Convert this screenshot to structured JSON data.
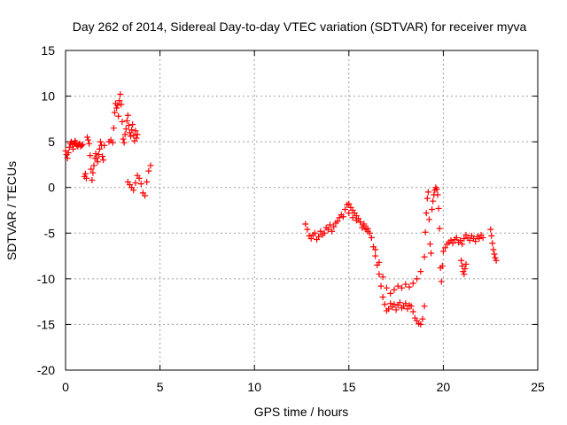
{
  "chart_data": {
    "type": "scatter",
    "title": "Day 262 of 2014, Sidereal Day-to-day VTEC variation (SDTVAR) for receiver myva",
    "xlabel": "GPS time / hours",
    "ylabel": "SDTVAR / TECUs",
    "xlim": [
      0,
      25
    ],
    "ylim": [
      -20,
      15
    ],
    "xticks": [
      0,
      5,
      10,
      15,
      20,
      25
    ],
    "yticks": [
      -20,
      -15,
      -10,
      -5,
      0,
      5,
      10,
      15
    ],
    "xtick_labels": [
      "0",
      "5",
      "10",
      "15",
      "20",
      "25"
    ],
    "ytick_labels": [
      "-20",
      "-15",
      "-10",
      "-5",
      "0",
      "5",
      "10",
      "15"
    ],
    "grid": true,
    "marker": "+",
    "marker_color": "#ff0000",
    "series": [
      {
        "name": "SDTVAR",
        "x": [
          0.0,
          0.05,
          0.1,
          0.15,
          0.2,
          0.25,
          0.3,
          0.35,
          0.4,
          0.45,
          0.5,
          0.55,
          0.6,
          0.65,
          0.7,
          0.75,
          0.8,
          0.85,
          0.9,
          1.0,
          1.05,
          1.1,
          1.15,
          1.2,
          1.25,
          1.3,
          1.35,
          1.4,
          1.45,
          1.5,
          1.55,
          1.6,
          1.65,
          1.7,
          1.75,
          1.8,
          1.85,
          1.9,
          1.95,
          2.0,
          2.05,
          2.3,
          2.4,
          2.5,
          2.55,
          2.6,
          2.65,
          2.7,
          2.75,
          2.8,
          2.85,
          2.9,
          2.95,
          3.0,
          3.05,
          3.1,
          3.15,
          3.2,
          3.25,
          3.3,
          3.35,
          3.4,
          3.45,
          3.5,
          3.55,
          3.6,
          3.65,
          3.7,
          3.75,
          3.8,
          3.3,
          3.4,
          3.5,
          3.6,
          3.7,
          3.8,
          3.9,
          4.0,
          4.1,
          4.2,
          4.3,
          4.4,
          4.5,
          12.7,
          12.8,
          12.9,
          13.0,
          13.1,
          13.2,
          13.3,
          13.4,
          13.5,
          13.6,
          13.7,
          13.8,
          13.9,
          14.0,
          14.1,
          14.2,
          14.3,
          14.4,
          14.5,
          14.6,
          14.7,
          14.8,
          14.9,
          15.0,
          15.1,
          15.2,
          15.3,
          15.4,
          15.5,
          15.6,
          15.7,
          15.8,
          15.9,
          16.0,
          16.1,
          16.2,
          16.3,
          16.4,
          16.5,
          16.6,
          16.7,
          16.8,
          16.9,
          17.0,
          17.1,
          17.2,
          17.3,
          17.4,
          17.5,
          17.6,
          17.7,
          17.8,
          17.9,
          18.0,
          18.1,
          18.2,
          18.3,
          18.4,
          18.5,
          18.6,
          18.7,
          18.8,
          18.9,
          19.0,
          15.0,
          15.2,
          15.4,
          15.6,
          15.8,
          16.0,
          16.2,
          16.4,
          16.6,
          16.8,
          17.0,
          17.2,
          17.4,
          17.6,
          17.8,
          18.0,
          18.2,
          18.4,
          18.6,
          18.8,
          19.0,
          19.05,
          19.1,
          19.15,
          19.2,
          19.25,
          19.3,
          19.35,
          19.4,
          19.45,
          19.5,
          19.55,
          19.6,
          19.65,
          19.7,
          19.75,
          19.8,
          19.85,
          19.9,
          19.95,
          20.0,
          20.1,
          20.2,
          20.3,
          20.4,
          20.5,
          20.6,
          20.7,
          20.8,
          20.9,
          21.0,
          21.1,
          21.2,
          21.3,
          21.4,
          21.5,
          21.6,
          21.7,
          21.8,
          21.9,
          22.0,
          22.1,
          20.95,
          21.0,
          21.05,
          21.1,
          21.15,
          21.2,
          22.5,
          22.55,
          22.6,
          22.65,
          22.7,
          22.75,
          22.8
        ],
        "y": [
          4.0,
          3.6,
          3.2,
          3.8,
          4.4,
          4.8,
          5.0,
          4.7,
          4.2,
          4.8,
          5.1,
          4.9,
          4.6,
          4.5,
          4.7,
          4.8,
          4.5,
          4.6,
          4.7,
          1.2,
          1.5,
          1.0,
          5.5,
          5.2,
          4.8,
          3.5,
          2.0,
          0.8,
          1.6,
          2.4,
          3.2,
          3.7,
          3.2,
          2.8,
          3.6,
          4.2,
          5.0,
          4.6,
          3.4,
          3.0,
          4.6,
          5.0,
          5.2,
          4.9,
          6.5,
          8.2,
          9.2,
          8.7,
          9.0,
          7.8,
          9.5,
          10.2,
          9.1,
          7.2,
          5.3,
          4.9,
          5.8,
          6.4,
          7.3,
          7.9,
          6.8,
          6.0,
          5.6,
          6.3,
          6.9,
          5.7,
          5.1,
          6.2,
          5.4,
          5.8,
          0.6,
          0.3,
          0.0,
          -0.3,
          0.5,
          1.3,
          1.0,
          0.4,
          -0.6,
          -0.9,
          0.6,
          1.8,
          2.4,
          -4.0,
          -4.6,
          -5.3,
          -5.6,
          -5.2,
          -5.0,
          -5.7,
          -5.4,
          -4.8,
          -5.2,
          -5.0,
          -4.4,
          -4.6,
          -4.1,
          -4.8,
          -4.3,
          -3.9,
          -3.7,
          -3.3,
          -3.0,
          -3.2,
          -2.4,
          -1.9,
          -1.8,
          -2.2,
          -2.5,
          -2.8,
          -3.1,
          -3.4,
          -3.8,
          -4.4,
          -4.2,
          -4.6,
          -4.8,
          -5.0,
          -5.5,
          -6.5,
          -7.5,
          -8.5,
          -9.5,
          -10.8,
          -12.0,
          -12.8,
          -13.5,
          -13.3,
          -12.7,
          -13.1,
          -12.8,
          -13.4,
          -12.9,
          -12.6,
          -13.2,
          -13.0,
          -12.7,
          -13.3,
          -12.9,
          -13.0,
          -13.6,
          -14.3,
          -14.6,
          -14.9,
          -15.0,
          -14.4,
          -13.0,
          -2.8,
          -3.3,
          -3.6,
          -3.8,
          -4.0,
          -4.5,
          -5.5,
          -6.8,
          -8.2,
          -9.8,
          -11.0,
          -11.6,
          -11.2,
          -10.8,
          -11.0,
          -10.6,
          -10.9,
          -10.5,
          -10.0,
          -9.2,
          -7.6,
          -4.9,
          -2.8,
          -1.2,
          -0.5,
          -3.5,
          -6.2,
          -7.2,
          -2.4,
          -1.5,
          -0.8,
          -0.3,
          0.0,
          -0.2,
          -0.8,
          -2.3,
          -4.5,
          -8.8,
          -10.3,
          -8.6,
          -7.0,
          -6.6,
          -6.2,
          -6.0,
          -5.8,
          -6.1,
          -5.7,
          -5.5,
          -6.0,
          -5.8,
          -6.2,
          -5.6,
          -5.2,
          -5.5,
          -5.8,
          -5.3,
          -5.6,
          -5.9,
          -5.4,
          -5.6,
          -5.2,
          -5.5,
          -8.0,
          -8.6,
          -9.2,
          -9.5,
          -8.9,
          -8.4,
          -4.6,
          -5.3,
          -6.1,
          -6.8,
          -7.3,
          -7.7,
          -8.0
        ]
      }
    ]
  }
}
